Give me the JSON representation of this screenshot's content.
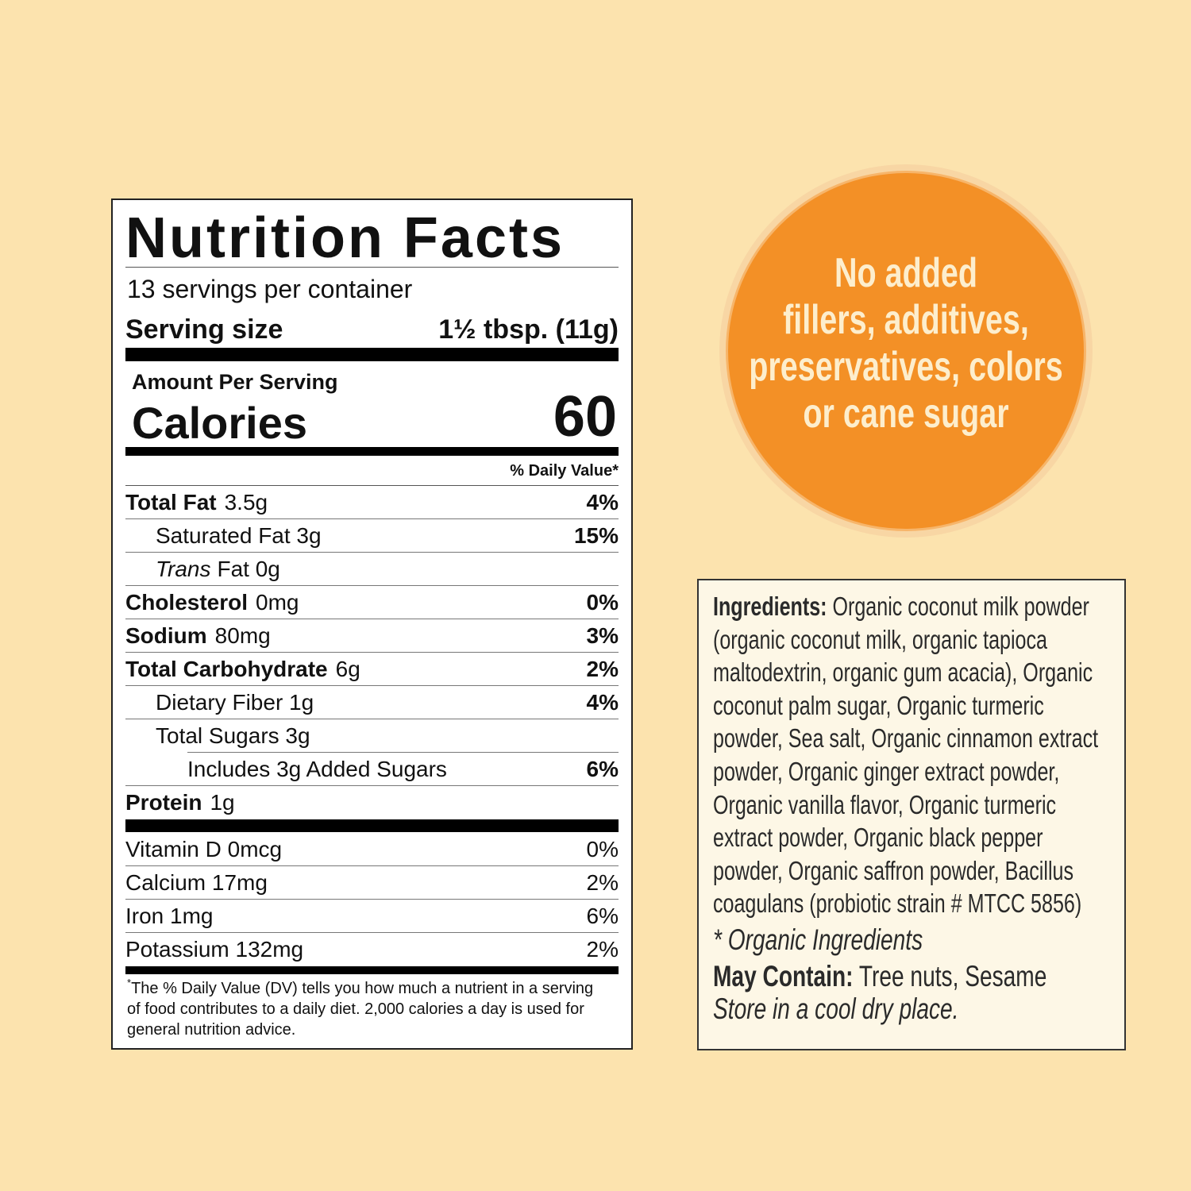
{
  "nutrition_facts": {
    "title": "Nutrition Facts",
    "servings": "13 servings per container",
    "serving_size_label": "Serving size",
    "serving_size_value": "1½ tbsp. (11g)",
    "amount_per_serving": "Amount Per Serving",
    "calories_label": "Calories",
    "calories_value": "60",
    "daily_value_header": "% Daily Value*",
    "nutrients": [
      {
        "name": "Total Fat",
        "amount": "3.5g",
        "dv": "4%",
        "sub": [
          {
            "name": "Saturated Fat 3g",
            "dv": "15%"
          },
          {
            "name_italic": "Trans",
            "name": "Fat 0g"
          }
        ]
      },
      {
        "name": "Cholesterol",
        "amount": "0mg",
        "dv": "0%"
      },
      {
        "name": "Sodium",
        "amount": "80mg",
        "dv": "3%"
      },
      {
        "name": "Total Carbohydrate",
        "amount": "6g",
        "dv": "2%",
        "sub": [
          {
            "name": "Dietary Fiber 1g",
            "dv": "4%"
          },
          {
            "name": "Total Sugars 3g",
            "sub": [
              {
                "name": "Includes 3g Added Sugars",
                "dv": "6%"
              }
            ]
          }
        ]
      },
      {
        "name": "Protein",
        "amount": "1g"
      }
    ],
    "vitamins": [
      {
        "name": "Vitamin D 0mcg",
        "dv": "0%"
      },
      {
        "name": "Calcium 17mg",
        "dv": "2%"
      },
      {
        "name": "Iron 1mg",
        "dv": "6%"
      },
      {
        "name": "Potassium 132mg",
        "dv": "2%"
      }
    ],
    "footnote_marker": "*",
    "footnote": "The % Daily Value (DV) tells you how much a nutrient in a serving of food contributes to a daily diet. 2,000 calories a day is used for general nutrition advice."
  },
  "badge": {
    "lines": [
      "No added",
      "fillers, additives,",
      "preservatives, colors",
      "or cane sugar"
    ]
  },
  "ingredients": {
    "label": "Ingredients:",
    "text": "Organic coconut milk powder (organic coconut milk, organic tapioca maltodextrin, organic gum acacia), Organic coconut palm sugar, Organic turmeric powder, Sea salt, Organic cinnamon extract powder, Organic ginger extract powder, Organic vanilla flavor, Organic turmeric extract powder, Organic black pepper powder, Organic saffron powder, Bacillus coagulans (probiotic strain # MTCC 5856)",
    "note": "* Organic Ingredients",
    "may_contain_label": "May Contain:",
    "may_contain": "Tree nuts, Sesame",
    "storage": "Store in a cool dry place."
  }
}
